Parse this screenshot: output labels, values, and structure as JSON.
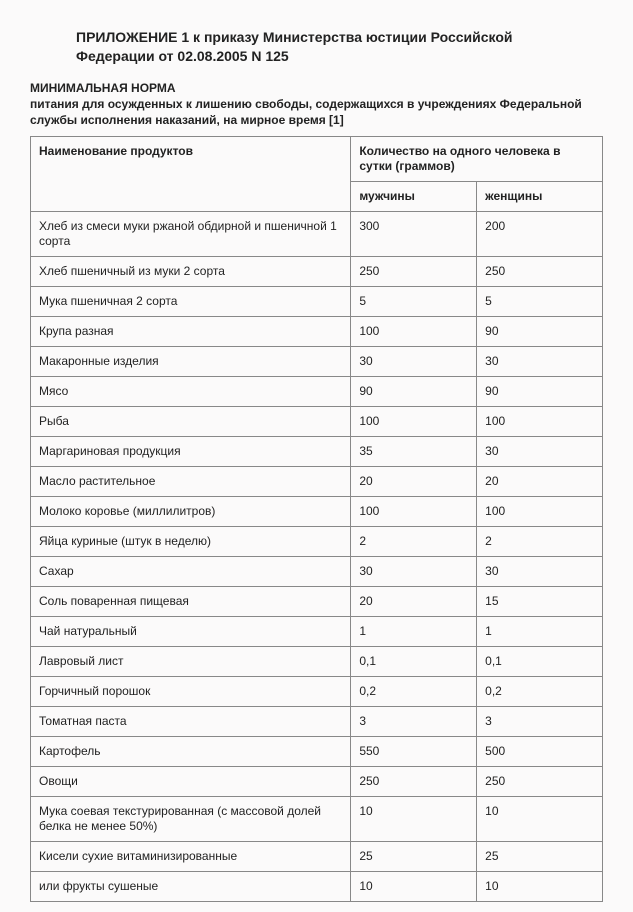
{
  "header": {
    "title": "ПРИЛОЖЕНИЕ 1 к приказу Министерства юстиции Российской Федерации от 02.08.2005 N 125"
  },
  "subtitle": {
    "line1": "МИНИМАЛЬНАЯ НОРМА",
    "line2": "питания для осужденных к лишению свободы, содержащихся в учреждениях Федеральной службы исполнения наказаний, на мирное время [1]"
  },
  "table": {
    "columns": {
      "name": "Наименование продуктов",
      "qty": "Количество на одного человека в сутки (граммов)",
      "male": "мужчины",
      "female": "женщины"
    },
    "col_widths": {
      "name": "56%",
      "male": "22%",
      "female": "22%"
    },
    "border_color": "#888888",
    "background_color": "#fbfafa",
    "font_size_pt": 9,
    "rows": [
      {
        "name": "Хлеб из смеси муки ржаной обдирной и пшеничной 1 сорта",
        "male": "300",
        "female": "200"
      },
      {
        "name": "Хлеб пшеничный из муки 2 сорта",
        "male": "250",
        "female": "250"
      },
      {
        "name": "Мука пшеничная 2 сорта",
        "male": "5",
        "female": "5"
      },
      {
        "name": "Крупа разная",
        "male": "100",
        "female": "90"
      },
      {
        "name": "Макаронные изделия",
        "male": "30",
        "female": "30"
      },
      {
        "name": "Мясо",
        "male": "90",
        "female": "90"
      },
      {
        "name": "Рыба",
        "male": "100",
        "female": "100"
      },
      {
        "name": "Маргариновая продукция",
        "male": "35",
        "female": "30"
      },
      {
        "name": "Масло растительное",
        "male": "20",
        "female": "20"
      },
      {
        "name": "Молоко коровье (миллилитров)",
        "male": "100",
        "female": "100"
      },
      {
        "name": "Яйца куриные (штук в неделю)",
        "male": "2",
        "female": "2"
      },
      {
        "name": "Сахар",
        "male": "30",
        "female": "30"
      },
      {
        "name": "Соль поваренная пищевая",
        "male": "20",
        "female": "15"
      },
      {
        "name": "Чай натуральный",
        "male": "1",
        "female": "1"
      },
      {
        "name": "Лавровый лист",
        "male": "0,1",
        "female": "0,1"
      },
      {
        "name": "Горчичный порошок",
        "male": "0,2",
        "female": "0,2"
      },
      {
        "name": "Томатная паста",
        "male": "3",
        "female": "3"
      },
      {
        "name": "Картофель",
        "male": "550",
        "female": "500"
      },
      {
        "name": "Овощи",
        "male": "250",
        "female": "250"
      },
      {
        "name": "Мука соевая текстурированная (с массовой долей белка не менее 50%)",
        "male": "10",
        "female": "10"
      },
      {
        "name": "Кисели сухие витаминизированные",
        "male": "25",
        "female": "25"
      },
      {
        "name": "или фрукты сушеные",
        "male": "10",
        "female": "10"
      }
    ]
  }
}
